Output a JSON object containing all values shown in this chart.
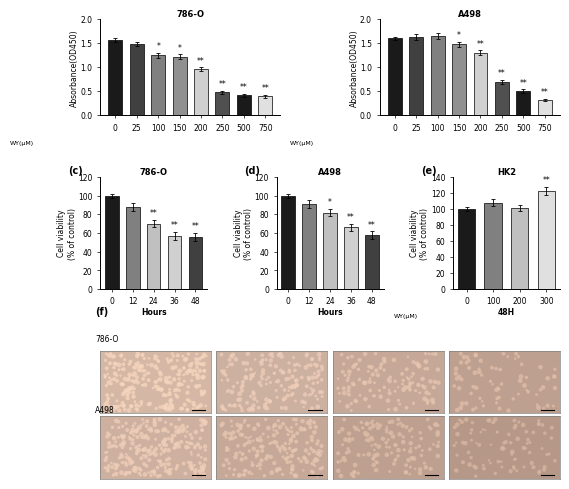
{
  "panel_ab": {
    "786O": {
      "categories": [
        "0",
        "25",
        "100",
        "150",
        "200",
        "250",
        "500",
        "750"
      ],
      "values": [
        1.57,
        1.48,
        1.25,
        1.22,
        0.96,
        0.48,
        0.42,
        0.4
      ],
      "errors": [
        0.04,
        0.04,
        0.05,
        0.05,
        0.04,
        0.03,
        0.03,
        0.03
      ],
      "colors": [
        "#1a1a1a",
        "#404040",
        "#808080",
        "#909090",
        "#d0d0d0",
        "#505050",
        "#1a1a1a",
        "#e0e0e0"
      ],
      "sig": [
        "",
        "",
        "*",
        "*",
        "**",
        "**",
        "**",
        "**"
      ],
      "ylabel": "Absorbance(OD450)",
      "xlabel": "WY(μM)",
      "title": "786-O",
      "ylim": [
        0,
        2.0
      ]
    },
    "A498": {
      "categories": [
        "0",
        "25",
        "100",
        "150",
        "200",
        "250",
        "500",
        "750"
      ],
      "values": [
        1.6,
        1.63,
        1.65,
        1.48,
        1.3,
        0.7,
        0.5,
        0.32
      ],
      "errors": [
        0.04,
        0.06,
        0.06,
        0.05,
        0.05,
        0.04,
        0.04,
        0.03
      ],
      "colors": [
        "#1a1a1a",
        "#404040",
        "#808080",
        "#909090",
        "#d0d0d0",
        "#505050",
        "#1a1a1a",
        "#e0e0e0"
      ],
      "sig": [
        "",
        "",
        "",
        "*",
        "**",
        "**",
        "**",
        "**"
      ],
      "ylabel": "Absorbance(OD450)",
      "xlabel": "WY(μM)",
      "title": "A498",
      "ylim": [
        0,
        2.0
      ]
    }
  },
  "panel_c": {
    "title": "786-O",
    "categories": [
      "0",
      "12",
      "24",
      "36",
      "48"
    ],
    "values": [
      100,
      88,
      70,
      57,
      56
    ],
    "errors": [
      2,
      4,
      4,
      4,
      4
    ],
    "colors": [
      "#1a1a1a",
      "#808080",
      "#c0c0c0",
      "#d0d0d0",
      "#404040"
    ],
    "sig": [
      "",
      "",
      "**",
      "**",
      "**"
    ],
    "ylabel": "Cell viability\n(% of control)",
    "xlabel": "Hours",
    "ylim": [
      0,
      120
    ]
  },
  "panel_d": {
    "title": "A498",
    "categories": [
      "0",
      "12",
      "24",
      "36",
      "48"
    ],
    "values": [
      100,
      91,
      82,
      66,
      58
    ],
    "errors": [
      2,
      4,
      4,
      4,
      4
    ],
    "colors": [
      "#1a1a1a",
      "#808080",
      "#c0c0c0",
      "#d0d0d0",
      "#404040"
    ],
    "sig": [
      "",
      "",
      "*",
      "**",
      "**"
    ],
    "ylabel": "Cell viability\n(% of control)",
    "xlabel": "Hours",
    "ylim": [
      0,
      120
    ]
  },
  "panel_e": {
    "title": "HK2",
    "categories": [
      "0",
      "100",
      "200",
      "300"
    ],
    "values": [
      100,
      108,
      101,
      123
    ],
    "errors": [
      3,
      4,
      4,
      5
    ],
    "colors": [
      "#1a1a1a",
      "#808080",
      "#c0c0c0",
      "#e0e0e0"
    ],
    "sig": [
      "",
      "",
      "",
      "**"
    ],
    "ylabel": "Cell viability\n(% of control)",
    "xlabel": "WY(μM)",
    "xlabel2": "48H",
    "ylim": [
      0,
      140
    ]
  },
  "background_color": "#ffffff",
  "bar_width": 0.65,
  "bg_786O": [
    "#d4b8a5",
    "#ccb0a0",
    "#c5a898",
    "#bea090"
  ],
  "bg_A498": [
    "#cdb0a0",
    "#c5a898",
    "#bda090",
    "#b59888"
  ],
  "densities_786O": [
    0.85,
    0.6,
    0.4,
    0.25
  ],
  "densities_A498": [
    0.85,
    0.65,
    0.45,
    0.3
  ]
}
